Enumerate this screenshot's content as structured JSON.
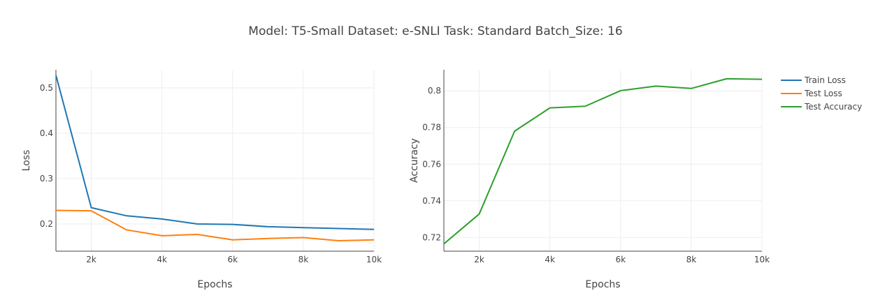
{
  "chart_data": {
    "title": "Model: T5-Small Dataset: e-SNLI Task: Standard Batch_Size: 16",
    "legend": {
      "placement": "top-right",
      "entries": [
        {
          "name": "Train Loss",
          "color": "#1f77b4"
        },
        {
          "name": "Test Loss",
          "color": "#ff7f0e"
        },
        {
          "name": "Test Accuracy",
          "color": "#2ca02c"
        }
      ]
    },
    "subplots": [
      {
        "type": "line",
        "xlabel": "Epochs",
        "ylabel": "Loss",
        "xlim": [
          1000,
          10000
        ],
        "ylim": [
          0.14,
          0.54
        ],
        "xticks": [
          2000,
          4000,
          6000,
          8000,
          10000
        ],
        "xtick_labels": [
          "2k",
          "4k",
          "6k",
          "8k",
          "10k"
        ],
        "yticks": [
          0.2,
          0.3,
          0.4,
          0.5
        ],
        "ytick_labels": [
          "0.2",
          "0.3",
          "0.4",
          "0.5"
        ],
        "grid": true,
        "series": [
          {
            "name": "Train Loss",
            "color": "#1f77b4",
            "x": [
              1000,
              2000,
              3000,
              4000,
              5000,
              6000,
              7000,
              8000,
              9000,
              10000
            ],
            "y": [
              0.528,
              0.236,
              0.218,
              0.211,
              0.2,
              0.199,
              0.194,
              0.192,
              0.19,
              0.188
            ]
          },
          {
            "name": "Test Loss",
            "color": "#ff7f0e",
            "x": [
              1000,
              2000,
              3000,
              4000,
              5000,
              6000,
              7000,
              8000,
              9000,
              10000
            ],
            "y": [
              0.23,
              0.229,
              0.187,
              0.174,
              0.177,
              0.165,
              0.168,
              0.17,
              0.163,
              0.165
            ]
          }
        ]
      },
      {
        "type": "line",
        "xlabel": "Epochs",
        "ylabel": "Accuracy",
        "xlim": [
          1000,
          10000
        ],
        "ylim": [
          0.7125,
          0.8115
        ],
        "xticks": [
          2000,
          4000,
          6000,
          8000,
          10000
        ],
        "xtick_labels": [
          "2k",
          "4k",
          "6k",
          "8k",
          "10k"
        ],
        "yticks": [
          0.72,
          0.74,
          0.76,
          0.78,
          0.8
        ],
        "ytick_labels": [
          "0.72",
          "0.74",
          "0.76",
          "0.78",
          "0.8"
        ],
        "grid": true,
        "series": [
          {
            "name": "Test Accuracy",
            "color": "#2ca02c",
            "x": [
              1000,
              2000,
              3000,
              4000,
              5000,
              6000,
              7000,
              8000,
              9000,
              10000
            ],
            "y": [
              0.7165,
              0.7328,
              0.778,
              0.7907,
              0.7916,
              0.8001,
              0.8026,
              0.8013,
              0.8066,
              0.8063
            ]
          }
        ]
      }
    ]
  }
}
